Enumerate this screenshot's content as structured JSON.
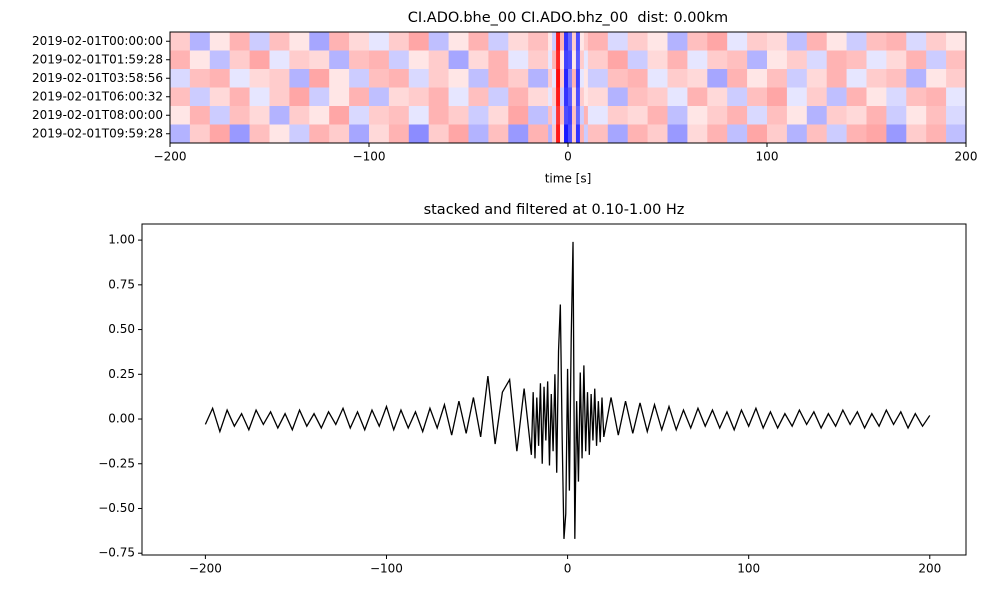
{
  "chart_data": [
    {
      "type": "heatmap",
      "title": "CI.ADO.bhe_00 CI.ADO.bhz_00  dist: 0.00km",
      "xlabel": "time [s]",
      "rows": [
        "2019-02-01T00:00:00",
        "2019-02-01T01:59:28",
        "2019-02-01T03:58:56",
        "2019-02-01T06:00:32",
        "2019-02-01T08:00:00",
        "2019-02-01T09:59:28"
      ],
      "x_edges": [
        -200,
        -190,
        -180,
        -170,
        -160,
        -150,
        -140,
        -130,
        -120,
        -110,
        -100,
        -90,
        -80,
        -70,
        -60,
        -50,
        -40,
        -30,
        -20,
        -10,
        -8,
        -6,
        -4,
        -2,
        0,
        2,
        4,
        6,
        8,
        10,
        20,
        30,
        40,
        50,
        60,
        70,
        80,
        90,
        100,
        110,
        120,
        130,
        140,
        150,
        160,
        170,
        180,
        190,
        200
      ],
      "z": [
        [
          0.2,
          -0.3,
          0.1,
          0.3,
          -0.2,
          0.25,
          0.1,
          -0.35,
          0.3,
          0.15,
          -0.1,
          0.2,
          0.35,
          -0.25,
          0.1,
          0.3,
          -0.2,
          0.15,
          0.25,
          0.1,
          -0.2,
          0.9,
          0.3,
          -0.8,
          -0.6,
          0.2,
          -0.7,
          0.1,
          0.2,
          0.3,
          -0.15,
          0.2,
          0.1,
          -0.3,
          0.25,
          0.35,
          -0.1,
          0.2,
          0.15,
          -0.25,
          0.3,
          0.1,
          -0.2,
          0.25,
          0.3,
          -0.15,
          0.2,
          0.1
        ],
        [
          0.3,
          0.1,
          -0.25,
          0.2,
          0.35,
          -0.1,
          0.2,
          0.15,
          -0.3,
          0.25,
          0.3,
          -0.2,
          0.1,
          0.2,
          -0.35,
          0.15,
          0.3,
          -0.1,
          0.2,
          -0.1,
          0.3,
          0.85,
          0.1,
          -0.75,
          -0.7,
          0.1,
          -0.65,
          0.2,
          -0.1,
          0.2,
          0.35,
          -0.2,
          0.15,
          0.3,
          -0.1,
          0.2,
          0.25,
          -0.3,
          0.1,
          0.2,
          -0.15,
          0.3,
          0.25,
          -0.1,
          0.15,
          0.3,
          -0.2,
          0.25
        ],
        [
          -0.15,
          0.25,
          0.3,
          -0.1,
          0.15,
          0.2,
          -0.3,
          0.35,
          0.1,
          -0.2,
          0.25,
          0.3,
          -0.15,
          0.2,
          0.1,
          -0.25,
          0.3,
          0.2,
          -0.3,
          0.2,
          -0.1,
          0.95,
          0.2,
          -0.85,
          -0.5,
          0.3,
          -0.75,
          -0.1,
          0.1,
          -0.2,
          0.25,
          0.3,
          -0.1,
          0.2,
          0.15,
          -0.35,
          0.3,
          0.1,
          0.25,
          -0.2,
          0.15,
          0.3,
          -0.1,
          0.2,
          0.25,
          -0.3,
          0.1,
          0.2
        ],
        [
          0.25,
          -0.2,
          0.15,
          0.3,
          -0.1,
          0.2,
          0.35,
          -0.2,
          0.1,
          0.3,
          -0.25,
          0.15,
          0.2,
          0.3,
          -0.1,
          0.25,
          -0.2,
          0.3,
          0.15,
          -0.1,
          0.2,
          0.9,
          -0.2,
          -0.8,
          -0.65,
          0.15,
          -0.7,
          0.2,
          0.1,
          0.15,
          -0.3,
          0.25,
          0.2,
          -0.1,
          0.3,
          0.15,
          -0.2,
          0.25,
          0.35,
          -0.1,
          0.2,
          -0.25,
          0.3,
          0.1,
          -0.15,
          0.25,
          0.3,
          -0.1
        ],
        [
          0.1,
          0.3,
          -0.2,
          0.25,
          0.15,
          -0.3,
          0.2,
          0.1,
          0.35,
          -0.15,
          0.2,
          0.25,
          -0.1,
          0.3,
          0.2,
          -0.2,
          0.15,
          0.35,
          -0.25,
          0.25,
          -0.15,
          0.8,
          0.25,
          -0.7,
          -0.75,
          0.25,
          -0.6,
          -0.2,
          0.3,
          -0.1,
          0.2,
          0.15,
          0.3,
          -0.25,
          0.1,
          0.2,
          0.3,
          -0.15,
          0.25,
          0.1,
          -0.3,
          0.2,
          0.15,
          0.3,
          -0.2,
          0.1,
          0.25,
          -0.15
        ],
        [
          -0.3,
          0.2,
          0.35,
          -0.4,
          0.25,
          0.1,
          -0.2,
          0.3,
          0.2,
          -0.35,
          0.15,
          0.3,
          -0.45,
          0.2,
          0.35,
          -0.3,
          0.25,
          -0.4,
          0.3,
          -0.3,
          0.2,
          0.9,
          0.1,
          -0.9,
          -0.7,
          0.2,
          -0.8,
          0.3,
          -0.2,
          0.25,
          -0.35,
          0.3,
          0.2,
          -0.4,
          0.15,
          0.3,
          -0.25,
          0.35,
          0.2,
          -0.3,
          0.25,
          -0.2,
          0.3,
          0.35,
          -0.4,
          0.2,
          0.3,
          -0.25
        ]
      ],
      "clim": [
        -1,
        1
      ],
      "xlim": [
        -200,
        200
      ],
      "xticks": [
        {
          "value": -200,
          "label": "−200"
        },
        {
          "value": -100,
          "label": "−100"
        },
        0,
        100,
        200
      ]
    },
    {
      "type": "line",
      "title": "stacked and filtered at 0.10-1.00 Hz",
      "x": [
        -200,
        -196,
        -192,
        -188,
        -184,
        -180,
        -176,
        -172,
        -168,
        -164,
        -160,
        -156,
        -152,
        -148,
        -144,
        -140,
        -136,
        -132,
        -128,
        -124,
        -120,
        -116,
        -112,
        -108,
        -104,
        -100,
        -96,
        -92,
        -88,
        -84,
        -80,
        -76,
        -72,
        -68,
        -64,
        -60,
        -56,
        -52,
        -48,
        -44,
        -40,
        -36,
        -32,
        -28,
        -24,
        -20,
        -19,
        -18,
        -17,
        -16,
        -15,
        -14,
        -13,
        -12,
        -11,
        -10,
        -9,
        -8,
        -7,
        -6,
        -5,
        -4,
        -3,
        -2,
        -1,
        0,
        1,
        2,
        3,
        4,
        5,
        6,
        7,
        8,
        9,
        10,
        11,
        12,
        13,
        14,
        15,
        16,
        17,
        18,
        19,
        20,
        24,
        28,
        32,
        36,
        40,
        44,
        48,
        52,
        56,
        60,
        64,
        68,
        72,
        76,
        80,
        84,
        88,
        92,
        96,
        100,
        104,
        108,
        112,
        116,
        120,
        124,
        128,
        132,
        136,
        140,
        144,
        148,
        152,
        156,
        160,
        164,
        168,
        172,
        176,
        180,
        184,
        188,
        192,
        196,
        200
      ],
      "series": [
        {
          "color": "#000000",
          "values": [
            -0.03,
            0.06,
            -0.07,
            0.05,
            -0.04,
            0.03,
            -0.06,
            0.05,
            -0.03,
            0.04,
            -0.05,
            0.03,
            -0.06,
            0.05,
            -0.04,
            0.03,
            -0.05,
            0.04,
            -0.03,
            0.06,
            -0.05,
            0.04,
            -0.06,
            0.05,
            -0.04,
            0.07,
            -0.06,
            0.05,
            -0.05,
            0.04,
            -0.07,
            0.06,
            -0.05,
            0.08,
            -0.09,
            0.1,
            -0.08,
            0.12,
            -0.1,
            0.24,
            -0.14,
            0.15,
            0.22,
            -0.18,
            0.17,
            -0.2,
            0.15,
            -0.22,
            0.12,
            -0.15,
            0.2,
            -0.25,
            0.18,
            -0.12,
            0.21,
            -0.26,
            0.14,
            -0.18,
            0.25,
            -0.3,
            0.38,
            0.64,
            -0.1,
            -0.67,
            -0.53,
            0.28,
            -0.4,
            0.45,
            0.99,
            -0.67,
            0.1,
            -0.35,
            0.26,
            -0.22,
            0.3,
            -0.18,
            0.15,
            -0.2,
            0.14,
            -0.12,
            0.17,
            -0.15,
            0.1,
            -0.13,
            0.12,
            -0.1,
            0.12,
            -0.09,
            0.1,
            -0.08,
            0.09,
            -0.07,
            0.08,
            -0.06,
            0.07,
            -0.06,
            0.05,
            -0.05,
            0.06,
            -0.04,
            0.05,
            -0.05,
            0.04,
            -0.06,
            0.05,
            -0.04,
            0.06,
            -0.05,
            0.04,
            -0.05,
            0.03,
            -0.04,
            0.05,
            -0.03,
            0.04,
            -0.05,
            0.03,
            -0.04,
            0.05,
            -0.03,
            0.04,
            -0.05,
            0.03,
            -0.04,
            0.05,
            -0.03,
            0.04,
            -0.05,
            0.03,
            -0.04,
            0.02
          ]
        }
      ],
      "xlim": [
        -235,
        220
      ],
      "ylim": [
        -0.76,
        1.09
      ],
      "xticks": [
        {
          "value": -200,
          "label": "−200"
        },
        {
          "value": -100,
          "label": "−100"
        },
        0,
        100,
        200
      ],
      "yticks": [
        {
          "value": -0.75,
          "label": "−0.75"
        },
        {
          "value": -0.5,
          "label": "−0.50"
        },
        {
          "value": -0.25,
          "label": "−0.25"
        },
        {
          "value": 0,
          "label": "0.00"
        },
        {
          "value": 0.25,
          "label": "0.25"
        },
        {
          "value": 0.5,
          "label": "0.50"
        },
        {
          "value": 0.75,
          "label": "0.75"
        },
        {
          "value": 1,
          "label": "1.00"
        }
      ]
    }
  ]
}
